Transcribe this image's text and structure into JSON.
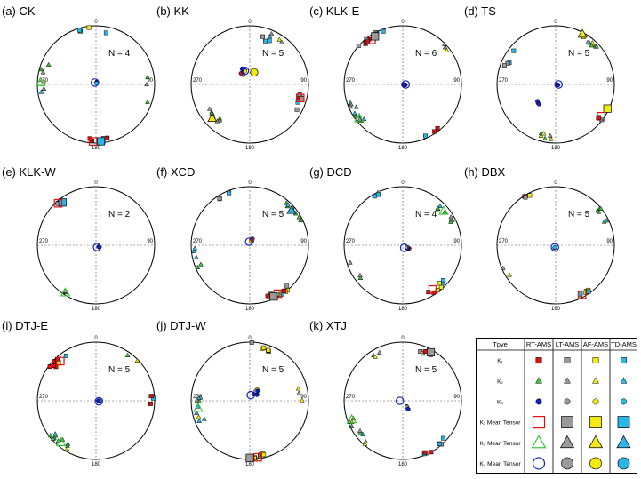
{
  "degree_labels": {
    "north": "0",
    "east": "90",
    "south": "180",
    "west": "270"
  },
  "colors": {
    "RT": "#e01010",
    "LT": "#9a9a9a",
    "AF": "#f2ea10",
    "TD": "#29b6e8",
    "K2_green": "#3cc83c",
    "K3_blue": "#1020c8"
  },
  "panels": [
    {
      "title": "(a) CK",
      "n_label": "N = 4",
      "seed": 11,
      "clusters": [
        {
          "type": "k1",
          "az": 180,
          "pl": 5,
          "spread": 14,
          "count": 8
        },
        {
          "type": "k1",
          "az": 0,
          "pl": 8,
          "spread": 18,
          "count": 5
        },
        {
          "type": "k2",
          "az": 275,
          "pl": 10,
          "spread": 20,
          "count": 6
        },
        {
          "type": "k2",
          "az": 95,
          "pl": 12,
          "spread": 14,
          "count": 3
        },
        {
          "type": "k3",
          "az": 20,
          "pl": 88,
          "spread": 5,
          "count": 5
        }
      ],
      "means": [
        {
          "type": "k1m",
          "color": "RT",
          "az": 183,
          "pl": 3
        },
        {
          "type": "k1m",
          "color": "TD",
          "az": 175,
          "pl": 3
        },
        {
          "type": "k2m",
          "color": "RT",
          "az": 272,
          "pl": 6
        },
        {
          "type": "k3m",
          "color": "RT",
          "az": 330,
          "pl": 87
        }
      ]
    },
    {
      "title": "(b) KK",
      "n_label": "N = 5",
      "seed": 23,
      "clusters": [
        {
          "type": "k1",
          "az": 110,
          "pl": 12,
          "spread": 10,
          "count": 7
        },
        {
          "type": "k1",
          "az": 20,
          "pl": 20,
          "spread": 10,
          "count": 3
        },
        {
          "type": "k2",
          "az": 230,
          "pl": 20,
          "spread": 12,
          "count": 9
        },
        {
          "type": "k2",
          "az": 30,
          "pl": 10,
          "spread": 8,
          "count": 4
        },
        {
          "type": "k3",
          "az": 330,
          "pl": 70,
          "spread": 12,
          "count": 7
        }
      ],
      "means": [
        {
          "type": "k1m",
          "color": "RT",
          "az": 105,
          "pl": 12
        },
        {
          "type": "k2m",
          "color": "AF",
          "az": 228,
          "pl": 15
        },
        {
          "type": "k3m",
          "color": "RT",
          "az": 340,
          "pl": 70
        },
        {
          "type": "k3m",
          "color": "AF",
          "az": 20,
          "pl": 72
        }
      ]
    },
    {
      "title": "(c) KLK-E",
      "n_label": "N = 6",
      "seed": 37,
      "clusters": [
        {
          "type": "k1",
          "az": 325,
          "pl": 5,
          "spread": 15,
          "count": 10
        },
        {
          "type": "k1",
          "az": 150,
          "pl": 3,
          "spread": 10,
          "count": 3
        },
        {
          "type": "k2",
          "az": 235,
          "pl": 8,
          "spread": 16,
          "count": 11
        },
        {
          "type": "k2",
          "az": 45,
          "pl": 5,
          "spread": 10,
          "count": 3
        },
        {
          "type": "k3",
          "az": 100,
          "pl": 88,
          "spread": 5,
          "count": 8
        }
      ],
      "means": [
        {
          "type": "k1m",
          "color": "RT",
          "az": 325,
          "pl": 8
        },
        {
          "type": "k1m",
          "color": "LT",
          "az": 330,
          "pl": 6
        },
        {
          "type": "k2m",
          "color": "RT",
          "az": 232,
          "pl": 6
        },
        {
          "type": "k3m",
          "color": "RT",
          "az": 90,
          "pl": 86
        }
      ]
    },
    {
      "title": "(d)  TS",
      "n_label": "N = 5",
      "seed": 41,
      "clusters": [
        {
          "type": "k1",
          "az": 300,
          "pl": 10,
          "spread": 10,
          "count": 4
        },
        {
          "type": "k1",
          "az": 125,
          "pl": 5,
          "spread": 10,
          "count": 4
        },
        {
          "type": "k2",
          "az": 40,
          "pl": 8,
          "spread": 10,
          "count": 8
        },
        {
          "type": "k2",
          "az": 195,
          "pl": 10,
          "spread": 12,
          "count": 6
        },
        {
          "type": "k3",
          "az": 225,
          "pl": 55,
          "spread": 5,
          "count": 3
        },
        {
          "type": "k3",
          "az": 100,
          "pl": 88,
          "spread": 4,
          "count": 4
        }
      ],
      "means": [
        {
          "type": "k1m",
          "color": "AF",
          "az": 115,
          "pl": 3
        },
        {
          "type": "k1m",
          "color": "RT",
          "az": 125,
          "pl": 6
        },
        {
          "type": "k2m",
          "color": "AF",
          "az": 28,
          "pl": 3
        },
        {
          "type": "k3m",
          "color": "RT",
          "az": 90,
          "pl": 86
        }
      ]
    },
    {
      "title": "(e) KLK-W",
      "n_label": "N = 2",
      "seed": 53,
      "clusters": [
        {
          "type": "k1",
          "az": 320,
          "pl": 5,
          "spread": 4,
          "count": 4
        },
        {
          "type": "k2",
          "az": 215,
          "pl": 5,
          "spread": 5,
          "count": 6
        },
        {
          "type": "k3",
          "az": 120,
          "pl": 86,
          "spread": 4,
          "count": 4
        }
      ],
      "means": [
        {
          "type": "k1m",
          "color": "TD",
          "az": 322,
          "pl": 8
        },
        {
          "type": "k1m",
          "color": "RT",
          "az": 318,
          "pl": 4
        },
        {
          "type": "k2m",
          "color": "RT",
          "az": 213,
          "pl": 4
        },
        {
          "type": "k3m",
          "color": "RT",
          "az": 150,
          "pl": 87
        }
      ]
    },
    {
      "title": "(f)  XCD",
      "n_label": "N = 5",
      "seed": 67,
      "clusters": [
        {
          "type": "k1",
          "az": 150,
          "pl": 5,
          "spread": 14,
          "count": 9
        },
        {
          "type": "k1",
          "az": 335,
          "pl": 5,
          "spread": 8,
          "count": 3
        },
        {
          "type": "k2",
          "az": 55,
          "pl": 8,
          "spread": 14,
          "count": 8
        },
        {
          "type": "k2",
          "az": 255,
          "pl": 8,
          "spread": 12,
          "count": 5
        },
        {
          "type": "k3",
          "az": 20,
          "pl": 82,
          "spread": 7,
          "count": 8
        }
      ],
      "means": [
        {
          "type": "k1m",
          "color": "RT",
          "az": 150,
          "pl": 5
        },
        {
          "type": "k1m",
          "color": "LT",
          "az": 155,
          "pl": 4
        },
        {
          "type": "k2m",
          "color": "TD",
          "az": 50,
          "pl": 8
        },
        {
          "type": "k3m",
          "color": "RT",
          "az": 350,
          "pl": 85
        }
      ]
    },
    {
      "title": "(g)  DCD",
      "n_label": "N = 4",
      "seed": 79,
      "clusters": [
        {
          "type": "k1",
          "az": 140,
          "pl": 8,
          "spread": 12,
          "count": 7
        },
        {
          "type": "k1",
          "az": 340,
          "pl": 5,
          "spread": 10,
          "count": 3
        },
        {
          "type": "k2",
          "az": 55,
          "pl": 10,
          "spread": 14,
          "count": 8
        },
        {
          "type": "k2",
          "az": 240,
          "pl": 10,
          "spread": 12,
          "count": 3
        },
        {
          "type": "k3",
          "az": 120,
          "pl": 82,
          "spread": 6,
          "count": 5
        }
      ],
      "means": [
        {
          "type": "k1m",
          "color": "RT",
          "az": 146,
          "pl": 10
        },
        {
          "type": "k2m",
          "color": "RT",
          "az": 50,
          "pl": 10
        },
        {
          "type": "k3m",
          "color": "RT",
          "az": 150,
          "pl": 86
        }
      ]
    },
    {
      "title": "(h)  DBX",
      "n_label": "N = 5",
      "seed": 83,
      "clusters": [
        {
          "type": "k1",
          "az": 150,
          "pl": 5,
          "spread": 8,
          "count": 7
        },
        {
          "type": "k1",
          "az": 330,
          "pl": 3,
          "spread": 5,
          "count": 3
        },
        {
          "type": "k2",
          "az": 60,
          "pl": 5,
          "spread": 10,
          "count": 6
        },
        {
          "type": "k2",
          "az": 240,
          "pl": 5,
          "spread": 8,
          "count": 2
        },
        {
          "type": "k3",
          "az": 200,
          "pl": 87,
          "spread": 4,
          "count": 4
        }
      ],
      "means": [
        {
          "type": "k1m",
          "color": "RT",
          "az": 152,
          "pl": 5
        },
        {
          "type": "k3m",
          "color": "RT",
          "az": 200,
          "pl": 87
        }
      ]
    },
    {
      "title": "(i) DTJ-E",
      "n_label": "N = 5",
      "seed": 97,
      "clusters": [
        {
          "type": "k1",
          "az": 320,
          "pl": 8,
          "spread": 14,
          "count": 10
        },
        {
          "type": "k1",
          "az": 90,
          "pl": 5,
          "spread": 8,
          "count": 3
        },
        {
          "type": "k2",
          "az": 220,
          "pl": 8,
          "spread": 15,
          "count": 10
        },
        {
          "type": "k2",
          "az": 40,
          "pl": 5,
          "spread": 10,
          "count": 3
        },
        {
          "type": "k3",
          "az": 90,
          "pl": 85,
          "spread": 5,
          "count": 8
        }
      ],
      "means": [
        {
          "type": "k1m",
          "color": "RT",
          "az": 318,
          "pl": 10
        },
        {
          "type": "k2m",
          "color": "RT",
          "az": 220,
          "pl": 8
        },
        {
          "type": "k3m",
          "color": "RT",
          "az": 100,
          "pl": 86
        }
      ]
    },
    {
      "title": "(j) DTJ-W",
      "n_label": "N = 5",
      "seed": 103,
      "clusters": [
        {
          "type": "k1",
          "az": 175,
          "pl": 3,
          "spread": 12,
          "count": 9
        },
        {
          "type": "k1",
          "az": 10,
          "pl": 5,
          "spread": 15,
          "count": 6
        },
        {
          "type": "k2",
          "az": 260,
          "pl": 12,
          "spread": 14,
          "count": 9
        },
        {
          "type": "k2",
          "az": 85,
          "pl": 15,
          "spread": 14,
          "count": 3
        },
        {
          "type": "k3",
          "az": 40,
          "pl": 76,
          "spread": 12,
          "count": 8
        }
      ],
      "means": [
        {
          "type": "k1m",
          "color": "RT",
          "az": 172,
          "pl": 3
        },
        {
          "type": "k1m",
          "color": "LT",
          "az": 180,
          "pl": 3
        },
        {
          "type": "k2m",
          "color": "RT",
          "az": 262,
          "pl": 12
        },
        {
          "type": "k3m",
          "color": "RT",
          "az": 10,
          "pl": 82
        }
      ]
    },
    {
      "title": "(k)  XTJ",
      "n_label": "N = 5",
      "seed": 109,
      "clusters": [
        {
          "type": "k1",
          "az": 145,
          "pl": 5,
          "spread": 15,
          "count": 8
        },
        {
          "type": "k1",
          "az": 25,
          "pl": 10,
          "spread": 10,
          "count": 4
        },
        {
          "type": "k2",
          "az": 235,
          "pl": 8,
          "spread": 16,
          "count": 9
        },
        {
          "type": "k2",
          "az": 330,
          "pl": 12,
          "spread": 8,
          "count": 3
        },
        {
          "type": "k3",
          "az": 150,
          "pl": 78,
          "spread": 6,
          "count": 4
        }
      ],
      "means": [
        {
          "type": "k1m",
          "color": "LT",
          "az": 30,
          "pl": 5
        },
        {
          "type": "k2m",
          "color": "RT",
          "az": 250,
          "pl": 8
        },
        {
          "type": "k3m",
          "color": "RT",
          "az": 270,
          "pl": 86
        }
      ]
    }
  ],
  "legend": {
    "headers": [
      "Tpye",
      "RT-AMS",
      "LT-AMS",
      "AF-AMS",
      "TD-AMS"
    ],
    "rows": [
      {
        "label": "K₁",
        "type": "k1"
      },
      {
        "label": "K₂",
        "type": "k2"
      },
      {
        "label": "K₃",
        "type": "k3"
      },
      {
        "label": "K₁ Mean Tensor",
        "type": "k1m"
      },
      {
        "label": "K₂ Mean Tensor",
        "type": "k2m"
      },
      {
        "label": "K₃ Mean Tensor",
        "type": "k3m"
      }
    ]
  }
}
